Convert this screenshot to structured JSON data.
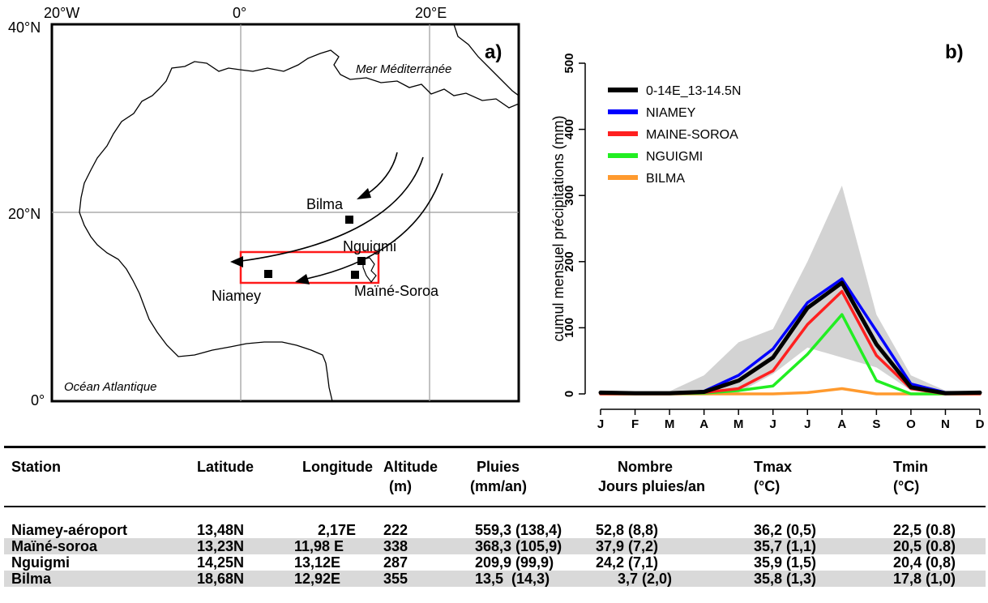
{
  "map": {
    "panel_label": "a)",
    "lon_labels": [
      "20°W",
      "0°",
      "20°E"
    ],
    "lat_labels": [
      "40°N",
      "20°N",
      "0°"
    ],
    "sea_labels": {
      "mediterranean": "Mer Méditerranée",
      "atlantic": "Océan Atlantique"
    },
    "stations": [
      "Bilma",
      "Nguigmi",
      "Niamey",
      "Maïné-Soroa"
    ]
  },
  "chart_data": {
    "type": "line",
    "panel_label": "b)",
    "ylabel": "cumul mensuel précipitations (mm)",
    "xlabel": "",
    "categories": [
      "J",
      "F",
      "M",
      "A",
      "M",
      "J",
      "J",
      "A",
      "S",
      "O",
      "N",
      "D"
    ],
    "ylim": [
      0,
      500
    ],
    "yticks": [
      0,
      100,
      200,
      300,
      400,
      500
    ],
    "grid": false,
    "legend_position": "top-left",
    "envelope": {
      "upper": [
        3,
        3,
        4,
        28,
        78,
        98,
        200,
        315,
        120,
        28,
        5,
        4
      ],
      "lower": [
        0,
        0,
        0,
        0,
        2,
        30,
        70,
        55,
        40,
        5,
        0,
        0
      ]
    },
    "series": [
      {
        "name": "0-14E_13-14.5N",
        "color": "#000000",
        "values": [
          2,
          1,
          1,
          3,
          20,
          55,
          130,
          168,
          75,
          10,
          1,
          2
        ]
      },
      {
        "name": "NIAMEY",
        "color": "#0000ff",
        "values": [
          1,
          1,
          1,
          4,
          28,
          68,
          138,
          174,
          95,
          15,
          2,
          1
        ]
      },
      {
        "name": "MAINE-SOROA",
        "color": "#ff2020",
        "values": [
          0,
          0,
          0,
          2,
          8,
          35,
          105,
          155,
          58,
          8,
          0,
          0
        ]
      },
      {
        "name": "NGUIGMI",
        "color": "#22ee22",
        "values": [
          0,
          0,
          0,
          1,
          5,
          12,
          60,
          120,
          20,
          0,
          0,
          0
        ]
      },
      {
        "name": "BILMA",
        "color": "#ff9a2e",
        "values": [
          0,
          0,
          0,
          0,
          0,
          0,
          2,
          8,
          0,
          0,
          0,
          0
        ]
      }
    ]
  },
  "table": {
    "headers": {
      "station": "Station",
      "latitude": "Latitude",
      "longitude": "Longitude",
      "altitude": [
        "Altitude",
        "(m)"
      ],
      "pluies": [
        "Pluies",
        "(mm/an)"
      ],
      "nombre": [
        "Nombre",
        "Jours pluies/an"
      ],
      "tmax": [
        "Tmax",
        "(°C)"
      ],
      "tmin": [
        "Tmin",
        "(°C)"
      ]
    },
    "rows": [
      {
        "station": "Niamey-aéroport",
        "latitude": "13,48N",
        "longitude": "2,17E",
        "altitude": "222",
        "pluies": "559,3 (138,4)",
        "nombre": "52,8 (8,8)",
        "tmax": "36,2 (0,5)",
        "tmin": "22,5 (0.8)"
      },
      {
        "station": "Maïné-soroa",
        "latitude": "13,23N",
        "longitude": "11,98 E",
        "altitude": "338",
        "pluies": "368,3 (105,9)",
        "nombre": "37,9 (7,2)",
        "tmax": "35,7 (1,1)",
        "tmin": "20,5 (0.8)"
      },
      {
        "station": "Nguigmi",
        "latitude": "14,25N",
        "longitude": "13,12E",
        "altitude": "287",
        "pluies": "209,9 (99,9)",
        "nombre": "24,2 (7,1)",
        "tmax": "35,9 (1,5)",
        "tmin": "20,4 (0,8)"
      },
      {
        "station": "Bilma",
        "latitude": "18,68N",
        "longitude": "12,92E",
        "altitude": "355",
        "pluies": "13,5  (14,3)",
        "nombre": "3,7 (2,0)",
        "tmax": "35,8 (1,3)",
        "tmin": "17,8 (1,0)"
      }
    ]
  }
}
